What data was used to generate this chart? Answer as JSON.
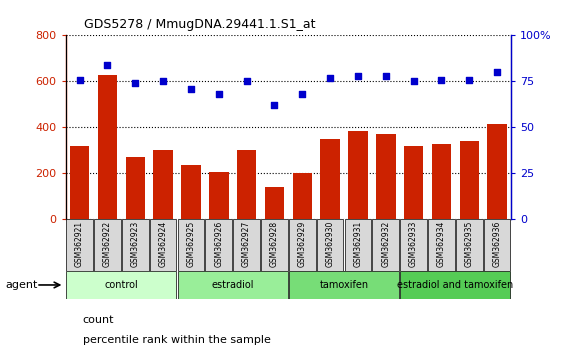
{
  "title": "GDS5278 / MmugDNA.29441.1.S1_at",
  "samples": [
    "GSM362921",
    "GSM362922",
    "GSM362923",
    "GSM362924",
    "GSM362925",
    "GSM362926",
    "GSM362927",
    "GSM362928",
    "GSM362929",
    "GSM362930",
    "GSM362931",
    "GSM362932",
    "GSM362933",
    "GSM362934",
    "GSM362935",
    "GSM362936"
  ],
  "counts": [
    320,
    630,
    270,
    300,
    235,
    205,
    300,
    140,
    200,
    350,
    385,
    370,
    320,
    330,
    340,
    415
  ],
  "percentiles": [
    76,
    84,
    74,
    75,
    71,
    68,
    75,
    62,
    68,
    77,
    78,
    78,
    75,
    76,
    76,
    80
  ],
  "groups": [
    {
      "label": "control",
      "start": 0,
      "end": 4,
      "color": "#ccffcc"
    },
    {
      "label": "estradiol",
      "start": 4,
      "end": 8,
      "color": "#99ee99"
    },
    {
      "label": "tamoxifen",
      "start": 8,
      "end": 12,
      "color": "#77dd77"
    },
    {
      "label": "estradiol and tamoxifen",
      "start": 12,
      "end": 16,
      "color": "#55cc55"
    }
  ],
  "bar_color": "#cc2200",
  "dot_color": "#0000cc",
  "left_ylim": [
    0,
    800
  ],
  "right_ylim": [
    0,
    100
  ],
  "left_yticks": [
    0,
    200,
    400,
    600,
    800
  ],
  "right_yticks": [
    0,
    25,
    50,
    75,
    100
  ],
  "left_yticklabels": [
    "0",
    "200",
    "400",
    "600",
    "800"
  ],
  "right_yticklabels": [
    "0",
    "25",
    "50",
    "75",
    "100%"
  ],
  "legend_count_label": "count",
  "legend_pct_label": "percentile rank within the sample",
  "agent_label": "agent"
}
